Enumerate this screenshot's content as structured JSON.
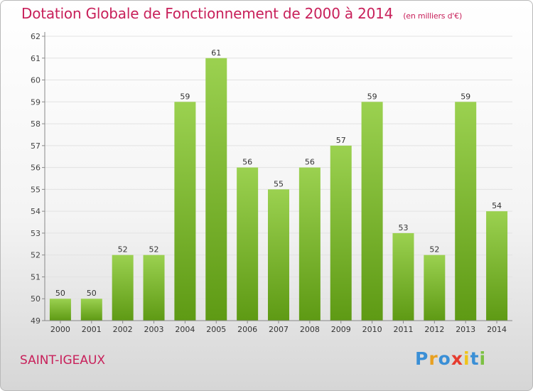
{
  "title": "Dotation Globale de Fonctionnement de 2000 à 2014",
  "subtitle": "(en milliers d'€)",
  "commune": "SAINT-IGEAUX",
  "logo": {
    "letters": [
      "P",
      "r",
      "o",
      "x",
      "i",
      "t",
      "i"
    ],
    "colors": [
      "#3a8fd6",
      "#e8a020",
      "#3a8fd6",
      "#e63c2f",
      "#f0c419",
      "#3a8fd6",
      "#7cc143"
    ]
  },
  "colors": {
    "accent": "#c8205a",
    "bar_top": "#9bd150",
    "bar_bottom": "#5e9a14",
    "axis": "#888888",
    "grid": "#e2e2e2"
  },
  "chart_data": {
    "type": "bar",
    "categories": [
      "2000",
      "2001",
      "2002",
      "2003",
      "2004",
      "2005",
      "2006",
      "2007",
      "2008",
      "2009",
      "2010",
      "2011",
      "2012",
      "2013",
      "2014"
    ],
    "values": [
      50,
      50,
      52,
      52,
      59,
      61,
      56,
      55,
      56,
      57,
      59,
      53,
      52,
      59,
      54
    ],
    "ylim": [
      49,
      62
    ],
    "yticks": [
      49,
      50,
      51,
      52,
      53,
      54,
      55,
      56,
      57,
      58,
      59,
      60,
      61,
      62
    ],
    "xlabel": "",
    "ylabel": "",
    "grid": true,
    "data_labels": true
  }
}
